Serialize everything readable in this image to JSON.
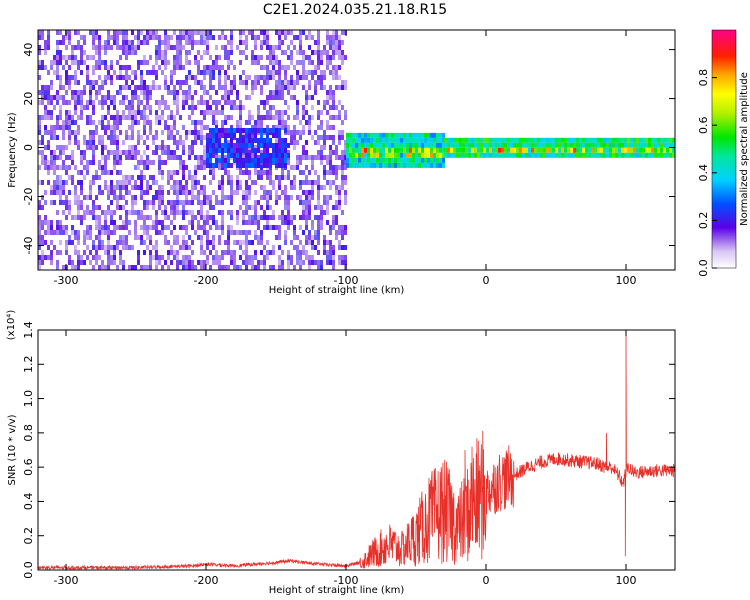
{
  "title": "C2E1.2024.035.21.18.R15",
  "chart_data": [
    {
      "type": "heatmap",
      "xlabel": "Height of straight line (km)",
      "ylabel": "Frequency (Hz)",
      "xlim": [
        -320,
        135
      ],
      "ylim": [
        -50,
        48
      ],
      "x_ticks": [
        -300,
        -200,
        -100,
        0,
        100
      ],
      "y_ticks": [
        -40,
        -20,
        0,
        20,
        40
      ],
      "colorbar": {
        "label": "Normalized spectral amplitude",
        "range": [
          0,
          1
        ],
        "ticks": [
          0.0,
          0.2,
          0.4,
          0.6,
          0.8
        ],
        "tick_labels": [
          "0.0",
          "0.2",
          "0.4",
          "0.6",
          "0.8"
        ]
      },
      "regions": [
        {
          "x_range": [
            -320,
            -100
          ],
          "freq_range": [
            -50,
            48
          ],
          "level": 0.1
        },
        {
          "x_range": [
            -200,
            -140
          ],
          "freq_range": [
            -8,
            8
          ],
          "level": 0.15
        },
        {
          "x_range": [
            -100,
            -30
          ],
          "freq_range": [
            -8,
            6
          ],
          "level": 0.3
        },
        {
          "x_range": [
            -30,
            135
          ],
          "freq_range": [
            -4,
            4
          ],
          "level": 0.35
        }
      ]
    },
    {
      "type": "line",
      "xlabel": "Height of straight line (km)",
      "ylabel": "SNR (10 * v/v)",
      "y_multiplier_label": "(x10⁴)",
      "xlim": [
        -320,
        135
      ],
      "ylim": [
        0,
        1.4
      ],
      "x_ticks": [
        -300,
        -200,
        -100,
        0,
        100
      ],
      "y_ticks": [
        0.0,
        0.2,
        0.4,
        0.6,
        0.8,
        1.0,
        1.2,
        1.4
      ],
      "y_tick_labels": [
        "0.0",
        "0.2",
        "0.4",
        "0.6",
        "0.8",
        "1.0",
        "1.2",
        "1.4"
      ],
      "color": "#e8302a",
      "x": [
        -320,
        -250,
        -210,
        -200,
        -180,
        -150,
        -140,
        -120,
        -100,
        -90,
        -80,
        -70,
        -60,
        -50,
        -40,
        -30,
        -20,
        -15,
        -10,
        0,
        10,
        20,
        30,
        40,
        50,
        60,
        70,
        80,
        85,
        90,
        95,
        98,
        100,
        102,
        105,
        110,
        120,
        135
      ],
      "y": [
        0.01,
        0.01,
        0.02,
        0.03,
        0.02,
        0.04,
        0.05,
        0.03,
        0.02,
        0.04,
        0.1,
        0.15,
        0.12,
        0.2,
        0.3,
        0.35,
        0.25,
        0.3,
        0.38,
        0.45,
        0.52,
        0.55,
        0.6,
        0.63,
        0.65,
        0.64,
        0.63,
        0.62,
        0.6,
        0.6,
        0.55,
        0.5,
        0.58,
        0.6,
        0.57,
        0.57,
        0.58,
        0.58
      ],
      "spikes": [
        {
          "x": 100,
          "y": 1.4
        },
        {
          "x": 99.5,
          "y": 0.08
        },
        {
          "x": -15,
          "y": 0.7
        },
        {
          "x": -10,
          "y": 0.72
        },
        {
          "x": 86,
          "y": 0.8
        }
      ]
    }
  ]
}
